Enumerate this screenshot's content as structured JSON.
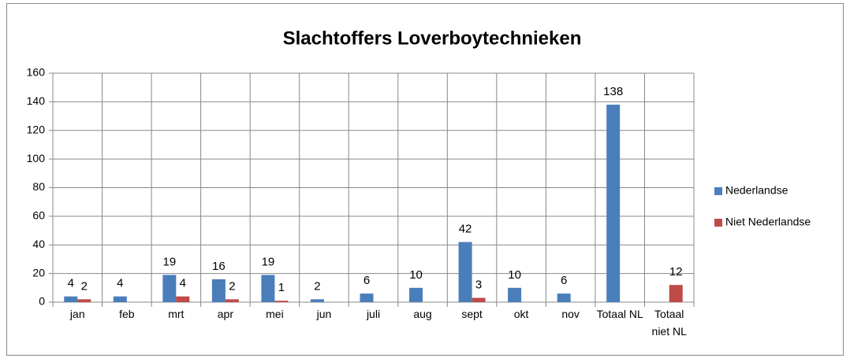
{
  "chart_data": {
    "type": "bar",
    "title": "Slachtoffers Loverboytechnieken",
    "categories": [
      "jan",
      "feb",
      "mrt",
      "apr",
      "mei",
      "jun",
      "juli",
      "aug",
      "sept",
      "okt",
      "nov",
      "Totaal NL",
      "Totaal niet NL"
    ],
    "series": [
      {
        "name": "Nederlandse",
        "color": "#4a7ebb",
        "values": [
          4,
          4,
          19,
          16,
          19,
          2,
          6,
          10,
          42,
          10,
          6,
          138,
          null
        ]
      },
      {
        "name": "Niet Nederlandse",
        "color": "#be4b48",
        "values": [
          2,
          null,
          4,
          2,
          1,
          null,
          null,
          null,
          3,
          null,
          null,
          null,
          12
        ]
      }
    ],
    "ylim": [
      0,
      160
    ],
    "yticks": [
      0,
      20,
      40,
      60,
      80,
      100,
      120,
      140,
      160
    ],
    "grid": true,
    "legend": "right"
  }
}
